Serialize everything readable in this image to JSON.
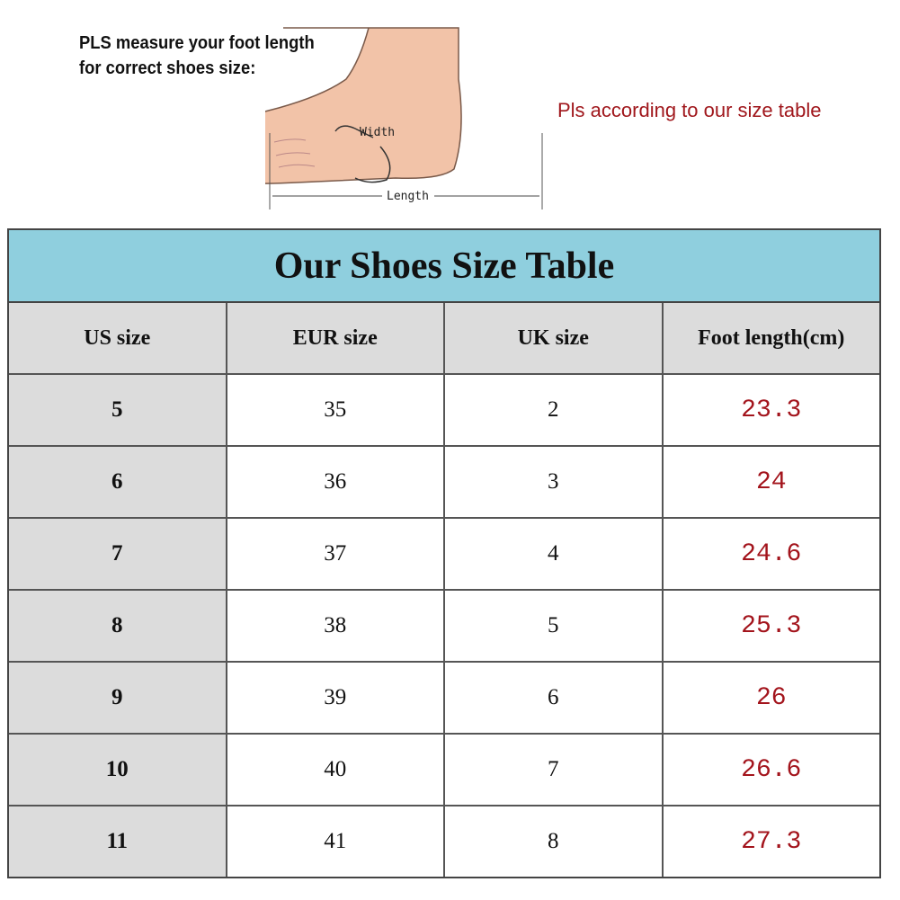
{
  "instructions": {
    "line1": "PLS measure your foot length",
    "line2": "for correct shoes size:"
  },
  "note": "Pls according to our size table",
  "diagram": {
    "width_label": "Width",
    "length_label": "Length"
  },
  "table": {
    "title": "Our Shoes Size Table",
    "headers": [
      "US size",
      "EUR size",
      "UK size",
      "Foot length(cm)"
    ],
    "rows": [
      [
        "5",
        "35",
        "2",
        "23.3"
      ],
      [
        "6",
        "36",
        "3",
        "24"
      ],
      [
        "7",
        "37",
        "4",
        "24.6"
      ],
      [
        "8",
        "38",
        "5",
        "25.3"
      ],
      [
        "9",
        "39",
        "6",
        "26"
      ],
      [
        "10",
        "40",
        "7",
        "26.6"
      ],
      [
        "11",
        "41",
        "8",
        "27.3"
      ]
    ]
  },
  "colors": {
    "title_bg": "#8fcfde",
    "header_bg": "#dcdcdc",
    "length_text": "#a3141c",
    "note_text": "#a0171c"
  }
}
